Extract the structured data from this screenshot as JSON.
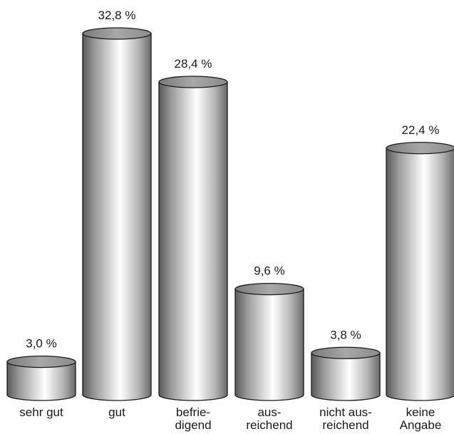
{
  "chart_data": {
    "type": "bar",
    "style": "3d-cylinder",
    "categories": [
      [
        "sehr gut"
      ],
      [
        "gut"
      ],
      [
        "befrie-",
        "digend"
      ],
      [
        "aus-",
        "reichend"
      ],
      [
        "nicht aus-",
        "reichend"
      ],
      [
        "keine",
        "Angabe"
      ]
    ],
    "values": [
      3.0,
      32.8,
      28.4,
      9.6,
      3.8,
      22.4
    ],
    "value_labels": [
      "3,0 %",
      "32,8 %",
      "28,4 %",
      "9,6 %",
      "3,8 %",
      "22,4 %"
    ],
    "ylim": [
      0,
      32.8
    ],
    "grid": false,
    "legend": "none",
    "colors": {
      "bar_dark": "#5a5a5a",
      "bar_light": "#ffffff",
      "bar_top": "#8c8c8c",
      "outline": "#1a1a1a"
    }
  }
}
